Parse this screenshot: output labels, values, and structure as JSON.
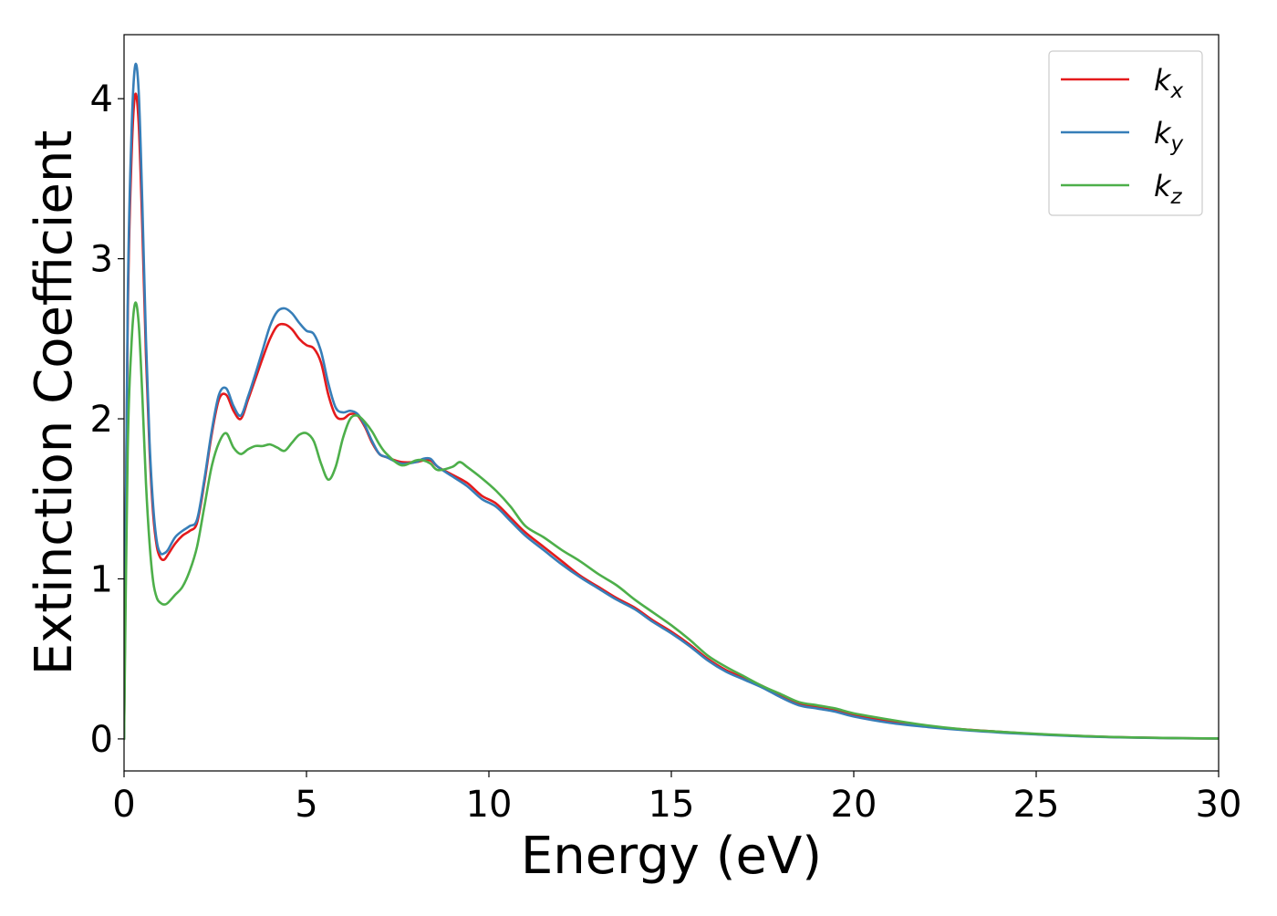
{
  "chart_data": {
    "type": "line",
    "title": "",
    "xlabel": "Energy (eV)",
    "ylabel": "Extinction Coefficient",
    "xlim": [
      0,
      30
    ],
    "ylim": [
      -0.2,
      4.4
    ],
    "xticks": [
      0,
      5,
      10,
      15,
      20,
      25,
      30
    ],
    "yticks": [
      0,
      1,
      2,
      3,
      4
    ],
    "grid": false,
    "legend_position": "top-right",
    "series": [
      {
        "name": "k_x",
        "label_base": "k",
        "label_sub": "x",
        "color": "#e41a1c",
        "x": [
          0,
          0.1,
          0.2,
          0.3,
          0.4,
          0.5,
          0.6,
          0.7,
          0.8,
          0.9,
          1.0,
          1.1,
          1.2,
          1.4,
          1.6,
          1.8,
          2.0,
          2.2,
          2.4,
          2.6,
          2.8,
          3.0,
          3.2,
          3.4,
          3.6,
          3.8,
          4.0,
          4.2,
          4.4,
          4.6,
          4.8,
          5.0,
          5.2,
          5.4,
          5.6,
          5.8,
          6.0,
          6.2,
          6.4,
          6.6,
          6.8,
          7.0,
          7.2,
          7.6,
          8.0,
          8.2,
          8.4,
          8.6,
          9.0,
          9.4,
          9.8,
          10.2,
          10.6,
          11.0,
          11.5,
          12.0,
          12.5,
          13.0,
          13.5,
          14.0,
          14.5,
          15.0,
          15.5,
          16.0,
          16.5,
          17.0,
          17.5,
          18.0,
          18.5,
          19.0,
          19.5,
          20.0,
          21.0,
          22.0,
          23.0,
          24.0,
          25.0,
          26.0,
          27.0,
          28.0,
          29.0,
          30.0
        ],
        "y": [
          0.0,
          2.6,
          3.6,
          4.02,
          3.85,
          3.2,
          2.4,
          1.8,
          1.4,
          1.2,
          1.13,
          1.12,
          1.15,
          1.22,
          1.27,
          1.3,
          1.35,
          1.6,
          1.9,
          2.12,
          2.15,
          2.05,
          2.0,
          2.12,
          2.25,
          2.38,
          2.5,
          2.58,
          2.59,
          2.56,
          2.5,
          2.46,
          2.44,
          2.35,
          2.15,
          2.02,
          2.0,
          2.03,
          2.02,
          1.95,
          1.85,
          1.78,
          1.76,
          1.73,
          1.73,
          1.74,
          1.74,
          1.7,
          1.65,
          1.6,
          1.52,
          1.47,
          1.38,
          1.29,
          1.2,
          1.11,
          1.02,
          0.95,
          0.88,
          0.82,
          0.74,
          0.67,
          0.59,
          0.5,
          0.43,
          0.38,
          0.33,
          0.27,
          0.22,
          0.2,
          0.18,
          0.15,
          0.11,
          0.08,
          0.06,
          0.045,
          0.03,
          0.02,
          0.012,
          0.008,
          0.004,
          0.003
        ]
      },
      {
        "name": "k_y",
        "label_base": "k",
        "label_sub": "y",
        "color": "#377eb8",
        "x": [
          0,
          0.1,
          0.2,
          0.3,
          0.4,
          0.5,
          0.6,
          0.7,
          0.8,
          0.9,
          1.0,
          1.1,
          1.2,
          1.4,
          1.6,
          1.8,
          2.0,
          2.2,
          2.4,
          2.6,
          2.8,
          3.0,
          3.2,
          3.4,
          3.6,
          3.8,
          4.0,
          4.2,
          4.4,
          4.6,
          4.8,
          5.0,
          5.2,
          5.4,
          5.6,
          5.8,
          6.0,
          6.2,
          6.4,
          6.6,
          6.8,
          7.0,
          7.2,
          7.6,
          8.0,
          8.2,
          8.4,
          8.6,
          9.0,
          9.4,
          9.8,
          10.2,
          10.6,
          11.0,
          11.5,
          12.0,
          12.5,
          13.0,
          13.5,
          14.0,
          14.5,
          15.0,
          15.5,
          16.0,
          16.5,
          17.0,
          17.5,
          18.0,
          18.5,
          19.0,
          19.5,
          20.0,
          21.0,
          22.0,
          23.0,
          24.0,
          25.0,
          26.0,
          27.0,
          28.0,
          29.0,
          30.0
        ],
        "y": [
          0.0,
          2.7,
          3.75,
          4.2,
          4.05,
          3.35,
          2.5,
          1.85,
          1.45,
          1.23,
          1.16,
          1.16,
          1.18,
          1.26,
          1.3,
          1.33,
          1.37,
          1.62,
          1.92,
          2.15,
          2.19,
          2.08,
          2.02,
          2.14,
          2.28,
          2.43,
          2.58,
          2.67,
          2.69,
          2.66,
          2.6,
          2.55,
          2.53,
          2.42,
          2.22,
          2.07,
          2.04,
          2.05,
          2.03,
          1.96,
          1.86,
          1.78,
          1.76,
          1.72,
          1.73,
          1.75,
          1.75,
          1.7,
          1.64,
          1.58,
          1.5,
          1.45,
          1.36,
          1.27,
          1.18,
          1.09,
          1.01,
          0.94,
          0.87,
          0.81,
          0.73,
          0.66,
          0.58,
          0.49,
          0.42,
          0.37,
          0.32,
          0.26,
          0.21,
          0.19,
          0.17,
          0.14,
          0.1,
          0.075,
          0.055,
          0.04,
          0.028,
          0.018,
          0.011,
          0.007,
          0.004,
          0.003
        ]
      },
      {
        "name": "k_z",
        "label_base": "k",
        "label_sub": "z",
        "color": "#4daf4a",
        "x": [
          0,
          0.1,
          0.2,
          0.3,
          0.4,
          0.5,
          0.6,
          0.7,
          0.8,
          0.9,
          1.0,
          1.1,
          1.2,
          1.4,
          1.6,
          1.8,
          2.0,
          2.2,
          2.4,
          2.6,
          2.8,
          3.0,
          3.2,
          3.4,
          3.6,
          3.8,
          4.0,
          4.2,
          4.4,
          4.6,
          4.8,
          5.0,
          5.2,
          5.4,
          5.6,
          5.8,
          6.0,
          6.2,
          6.4,
          6.6,
          6.8,
          7.0,
          7.2,
          7.6,
          8.0,
          8.2,
          8.4,
          8.6,
          9.0,
          9.2,
          9.4,
          9.8,
          10.2,
          10.6,
          11.0,
          11.5,
          12.0,
          12.5,
          13.0,
          13.5,
          14.0,
          14.5,
          15.0,
          15.5,
          16.0,
          16.5,
          17.0,
          17.5,
          18.0,
          18.5,
          19.0,
          19.5,
          20.0,
          21.0,
          22.0,
          23.0,
          24.0,
          25.0,
          26.0,
          27.0,
          28.0,
          29.0,
          30.0
        ],
        "y": [
          0.0,
          1.8,
          2.45,
          2.72,
          2.6,
          2.15,
          1.6,
          1.22,
          0.98,
          0.88,
          0.85,
          0.84,
          0.85,
          0.9,
          0.95,
          1.05,
          1.2,
          1.45,
          1.7,
          1.85,
          1.91,
          1.82,
          1.78,
          1.81,
          1.83,
          1.83,
          1.84,
          1.82,
          1.8,
          1.85,
          1.9,
          1.91,
          1.86,
          1.72,
          1.62,
          1.7,
          1.88,
          2.0,
          2.02,
          1.98,
          1.92,
          1.84,
          1.78,
          1.71,
          1.74,
          1.74,
          1.72,
          1.68,
          1.7,
          1.73,
          1.7,
          1.63,
          1.55,
          1.45,
          1.33,
          1.26,
          1.18,
          1.11,
          1.03,
          0.96,
          0.87,
          0.79,
          0.71,
          0.62,
          0.52,
          0.45,
          0.39,
          0.33,
          0.28,
          0.23,
          0.21,
          0.19,
          0.16,
          0.12,
          0.085,
          0.06,
          0.045,
          0.032,
          0.021,
          0.013,
          0.008,
          0.005,
          0.003
        ]
      }
    ]
  }
}
